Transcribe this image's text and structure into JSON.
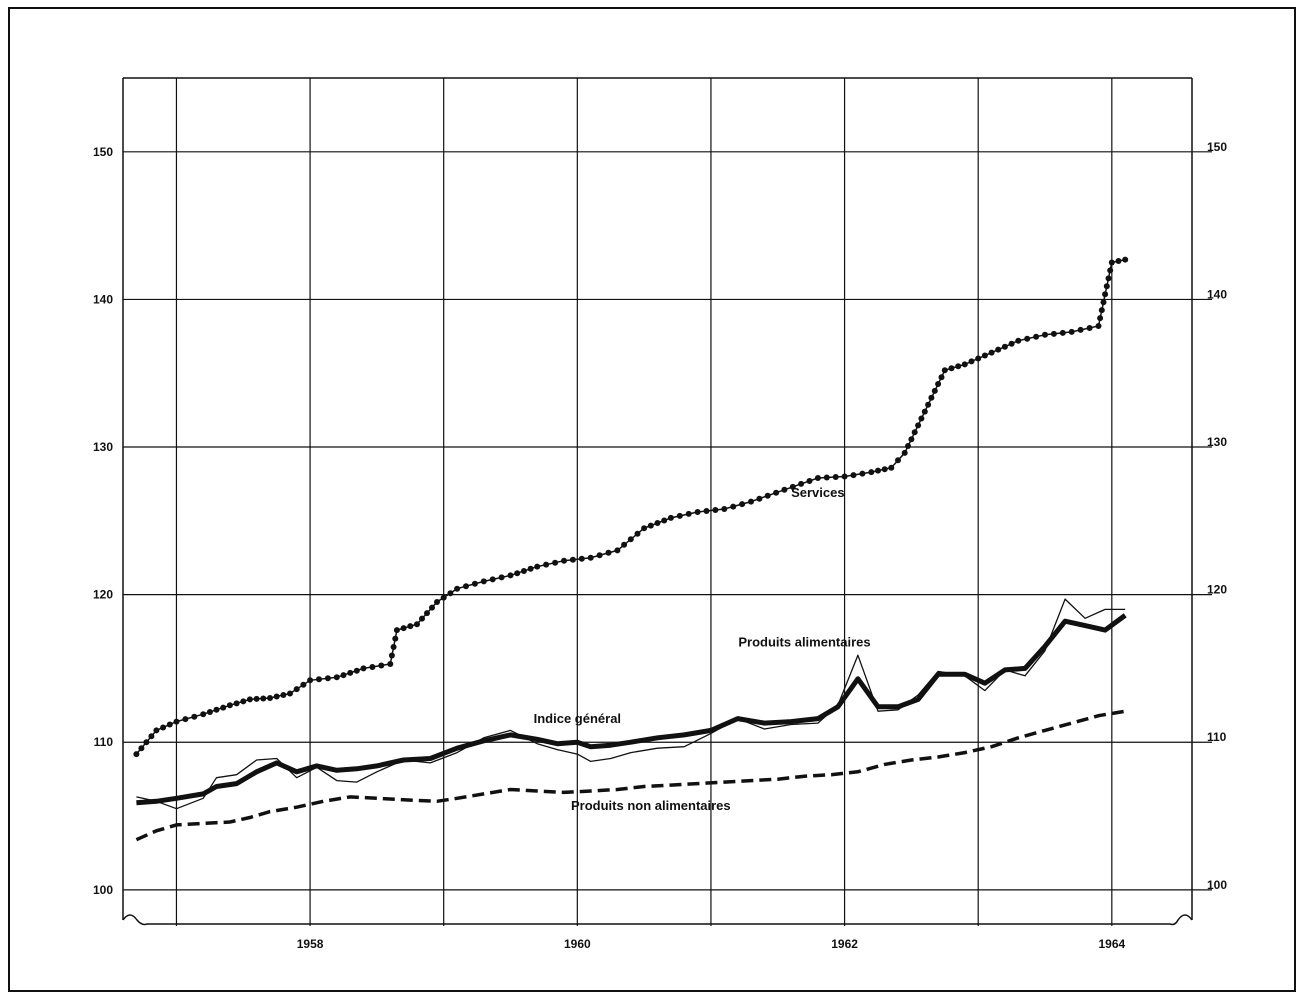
{
  "chart_data": {
    "type": "line",
    "title": "",
    "xlabel": "",
    "ylabel": "",
    "xlim": [
      1956.6,
      1964.6
    ],
    "ylim": [
      98.5,
      155
    ],
    "grid": true,
    "y_ticks": [
      100,
      110,
      120,
      130,
      140,
      150
    ],
    "y_tick_labels_left": [
      "100",
      "110",
      "120",
      "130",
      "140",
      "150"
    ],
    "y_tick_labels_right": [
      "100",
      "110",
      "120",
      "130",
      "140",
      "150"
    ],
    "x_ticks": [
      1958,
      1960,
      1962,
      1964
    ],
    "x_tick_labels": [
      "1958",
      "1960",
      "1962",
      "1964"
    ],
    "series": [
      {
        "name": "Services",
        "style": "dotted-markers",
        "x": [
          1956.7,
          1956.85,
          1957.0,
          1957.2,
          1957.4,
          1957.55,
          1957.7,
          1957.85,
          1958.0,
          1958.2,
          1958.4,
          1958.6,
          1958.65,
          1958.8,
          1958.95,
          1959.1,
          1959.3,
          1959.5,
          1959.7,
          1959.9,
          1960.1,
          1960.3,
          1960.5,
          1960.7,
          1960.9,
          1961.1,
          1961.3,
          1961.55,
          1961.8,
          1962.0,
          1962.2,
          1962.35,
          1962.45,
          1962.6,
          1962.75,
          1962.9,
          1963.1,
          1963.3,
          1963.5,
          1963.7,
          1963.9,
          1964.0,
          1964.1
        ],
        "values": [
          109.2,
          110.8,
          111.4,
          111.9,
          112.5,
          112.9,
          113.0,
          113.3,
          114.2,
          114.4,
          115.0,
          115.3,
          117.6,
          118.0,
          119.5,
          120.4,
          120.9,
          121.3,
          121.9,
          122.3,
          122.5,
          123.0,
          124.5,
          125.2,
          125.6,
          125.8,
          126.3,
          127.1,
          127.9,
          128.0,
          128.3,
          128.6,
          129.6,
          132.4,
          135.2,
          135.6,
          136.4,
          137.2,
          137.6,
          137.8,
          138.2,
          142.5,
          142.7
        ]
      },
      {
        "name": "Produits alimentaires",
        "style": "thin",
        "x": [
          1956.7,
          1956.85,
          1957.0,
          1957.2,
          1957.3,
          1957.45,
          1957.6,
          1957.75,
          1957.9,
          1958.05,
          1958.2,
          1958.35,
          1958.5,
          1958.7,
          1958.9,
          1959.1,
          1959.3,
          1959.5,
          1959.7,
          1959.85,
          1960.0,
          1960.1,
          1960.25,
          1960.4,
          1960.6,
          1960.8,
          1961.0,
          1961.2,
          1961.4,
          1961.6,
          1961.8,
          1961.95,
          1962.1,
          1962.25,
          1962.4,
          1962.55,
          1962.7,
          1962.9,
          1963.05,
          1963.2,
          1963.35,
          1963.5,
          1963.65,
          1963.8,
          1963.95,
          1964.1
        ],
        "values": [
          106.3,
          106.0,
          105.5,
          106.2,
          107.6,
          107.8,
          108.8,
          108.9,
          107.6,
          108.3,
          107.4,
          107.3,
          108.0,
          108.8,
          108.6,
          109.3,
          110.3,
          110.8,
          109.9,
          109.5,
          109.2,
          108.7,
          108.9,
          109.3,
          109.6,
          109.7,
          110.6,
          111.6,
          110.9,
          111.2,
          111.3,
          112.5,
          115.9,
          112.1,
          112.2,
          113.2,
          114.8,
          114.5,
          113.5,
          114.9,
          114.5,
          116.2,
          119.7,
          118.4,
          119.0,
          119.0
        ]
      },
      {
        "name": "Indice général",
        "style": "thick",
        "x": [
          1956.7,
          1956.85,
          1957.0,
          1957.2,
          1957.3,
          1957.45,
          1957.6,
          1957.75,
          1957.9,
          1958.05,
          1958.2,
          1958.35,
          1958.5,
          1958.7,
          1958.9,
          1959.1,
          1959.3,
          1959.5,
          1959.7,
          1959.85,
          1960.0,
          1960.1,
          1960.25,
          1960.4,
          1960.6,
          1960.8,
          1961.0,
          1961.2,
          1961.4,
          1961.6,
          1961.8,
          1961.95,
          1962.1,
          1962.25,
          1962.4,
          1962.55,
          1962.7,
          1962.9,
          1963.05,
          1963.2,
          1963.35,
          1963.5,
          1963.65,
          1963.8,
          1963.95,
          1964.1
        ],
        "values": [
          105.9,
          106.0,
          106.2,
          106.5,
          107.0,
          107.2,
          108.0,
          108.6,
          108.0,
          108.4,
          108.1,
          108.2,
          108.4,
          108.8,
          108.9,
          109.6,
          110.1,
          110.5,
          110.2,
          109.9,
          110.0,
          109.7,
          109.8,
          110.0,
          110.3,
          110.5,
          110.8,
          111.6,
          111.3,
          111.4,
          111.6,
          112.4,
          114.3,
          112.4,
          112.4,
          112.9,
          114.6,
          114.6,
          114.0,
          114.9,
          115.0,
          116.5,
          118.2,
          117.9,
          117.6,
          118.6
        ]
      },
      {
        "name": "Produits non alimentaires",
        "style": "dashed",
        "x": [
          1956.7,
          1956.85,
          1957.0,
          1957.2,
          1957.4,
          1957.55,
          1957.7,
          1957.9,
          1958.1,
          1958.3,
          1958.5,
          1958.7,
          1958.95,
          1959.1,
          1959.3,
          1959.5,
          1959.7,
          1959.9,
          1960.1,
          1960.3,
          1960.5,
          1960.7,
          1960.9,
          1961.1,
          1961.3,
          1961.5,
          1961.7,
          1961.9,
          1962.1,
          1962.3,
          1962.5,
          1962.7,
          1962.9,
          1963.1,
          1963.3,
          1963.5,
          1963.7,
          1963.9,
          1964.1
        ],
        "values": [
          103.4,
          104.0,
          104.4,
          104.5,
          104.6,
          104.9,
          105.3,
          105.6,
          106.0,
          106.3,
          106.2,
          106.1,
          106.0,
          106.2,
          106.5,
          106.8,
          106.7,
          106.6,
          106.7,
          106.8,
          107.0,
          107.1,
          107.2,
          107.3,
          107.4,
          107.5,
          107.7,
          107.8,
          108.0,
          108.5,
          108.8,
          109.0,
          109.3,
          109.7,
          110.3,
          110.8,
          111.3,
          111.8,
          112.1
        ]
      }
    ],
    "annotations": [
      {
        "text": "Services",
        "x": 1961.8,
        "y": 126.6
      },
      {
        "text": "Produits alimentaires",
        "x": 1961.7,
        "y": 116.5
      },
      {
        "text": "Indice général",
        "x": 1960.0,
        "y": 111.3
      },
      {
        "text": "Produits non alimentaires",
        "x": 1960.55,
        "y": 105.4
      }
    ]
  }
}
